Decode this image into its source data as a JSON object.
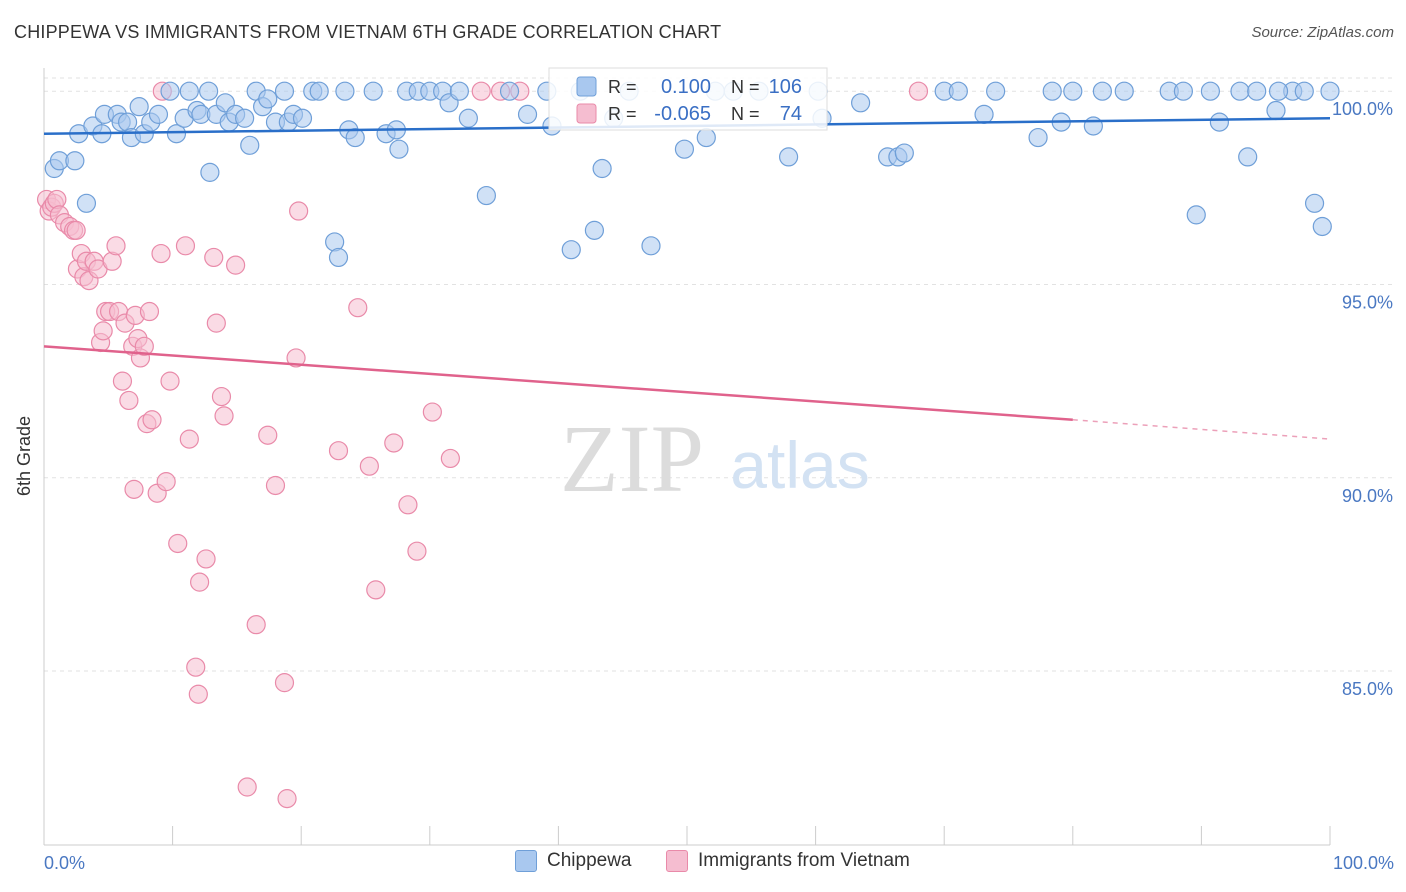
{
  "header": {
    "title": "CHIPPEWA VS IMMIGRANTS FROM VIETNAM 6TH GRADE CORRELATION CHART",
    "source": "Source: ZipAtlas.com"
  },
  "watermark": {
    "zip": "ZIP",
    "atlas": "atlas"
  },
  "legend_top": {
    "rows": [
      {
        "r_label": "R =",
        "r_value": "0.100",
        "n_label": "N =",
        "n_value": "106"
      },
      {
        "r_label": "R =",
        "r_value": "-0.065",
        "n_label": "N =",
        "n_value": "74"
      }
    ]
  },
  "legend_bottom": {
    "items": [
      "Chippewa",
      "Immigrants from Vietnam"
    ]
  },
  "colors": {
    "blue_fill": "#a9c8ef",
    "blue_stroke": "#6f9fd8",
    "blue_line": "#2a6fc9",
    "pink_fill": "#f5bdd0",
    "pink_stroke": "#e98aa9",
    "pink_line": "#e0628c",
    "tick_label": "#4a78c2",
    "grid": "#e2e2e2"
  },
  "chart_data": {
    "type": "scatter",
    "title": "CHIPPEWA VS IMMIGRANTS FROM VIETNAM 6TH GRADE CORRELATION CHART",
    "xlabel": "",
    "ylabel": "6th Grade",
    "xlim": [
      0,
      100
    ],
    "ylim": [
      80.5,
      100.6
    ],
    "x_tick_labels": [
      "0.0%",
      "100.0%"
    ],
    "y_ticks": [
      85,
      90,
      95,
      100
    ],
    "y_tick_labels": [
      "85.0%",
      "90.0%",
      "95.0%",
      "100.0%"
    ],
    "grid": true,
    "legend": "bottom",
    "series": [
      {
        "name": "Chippewa",
        "r": 0.1,
        "n": 106,
        "trend": {
          "x": [
            0,
            100
          ],
          "y": [
            98.9,
            99.3
          ]
        },
        "points": [
          [
            0.8,
            98.0
          ],
          [
            1.2,
            98.2
          ],
          [
            2.4,
            98.2
          ],
          [
            2.7,
            98.9
          ],
          [
            3.3,
            97.1
          ],
          [
            3.8,
            99.1
          ],
          [
            4.5,
            98.9
          ],
          [
            4.7,
            99.4
          ],
          [
            5.7,
            99.4
          ],
          [
            6.0,
            99.2
          ],
          [
            6.5,
            99.2
          ],
          [
            6.8,
            98.8
          ],
          [
            7.4,
            99.6
          ],
          [
            7.8,
            98.9
          ],
          [
            8.3,
            99.2
          ],
          [
            8.9,
            99.4
          ],
          [
            9.8,
            100.0
          ],
          [
            10.3,
            98.9
          ],
          [
            10.9,
            99.3
          ],
          [
            11.3,
            100.0
          ],
          [
            11.9,
            99.5
          ],
          [
            12.2,
            99.4
          ],
          [
            12.8,
            100.0
          ],
          [
            12.9,
            97.9
          ],
          [
            13.4,
            99.4
          ],
          [
            14.1,
            99.7
          ],
          [
            14.4,
            99.2
          ],
          [
            14.9,
            99.4
          ],
          [
            15.6,
            99.3
          ],
          [
            16.0,
            98.6
          ],
          [
            16.5,
            100.0
          ],
          [
            17.0,
            99.6
          ],
          [
            17.4,
            99.8
          ],
          [
            18.0,
            99.2
          ],
          [
            18.7,
            100.0
          ],
          [
            19.0,
            99.2
          ],
          [
            19.4,
            99.4
          ],
          [
            20.1,
            99.3
          ],
          [
            20.9,
            100.0
          ],
          [
            21.4,
            100.0
          ],
          [
            22.6,
            96.1
          ],
          [
            22.9,
            95.7
          ],
          [
            23.4,
            100.0
          ],
          [
            23.7,
            99.0
          ],
          [
            24.2,
            98.8
          ],
          [
            25.6,
            100.0
          ],
          [
            26.6,
            98.9
          ],
          [
            27.4,
            99.0
          ],
          [
            27.6,
            98.5
          ],
          [
            28.2,
            100.0
          ],
          [
            29.1,
            100.0
          ],
          [
            30.0,
            100.0
          ],
          [
            31.0,
            100.0
          ],
          [
            31.5,
            99.7
          ],
          [
            32.3,
            100.0
          ],
          [
            33.0,
            99.3
          ],
          [
            34.4,
            97.3
          ],
          [
            36.2,
            100.0
          ],
          [
            37.6,
            99.4
          ],
          [
            39.1,
            100.0
          ],
          [
            41.0,
            95.9
          ],
          [
            41.7,
            100.0
          ],
          [
            42.8,
            96.4
          ],
          [
            43.4,
            98.0
          ],
          [
            44.3,
            99.3
          ],
          [
            45.5,
            100.0
          ],
          [
            47.2,
            96.0
          ],
          [
            49.8,
            98.5
          ],
          [
            51.5,
            98.8
          ],
          [
            52.2,
            100.0
          ],
          [
            53.6,
            100.0
          ],
          [
            55.6,
            100.0
          ],
          [
            57.9,
            98.3
          ],
          [
            60.2,
            100.0
          ],
          [
            63.5,
            99.7
          ],
          [
            65.6,
            98.3
          ],
          [
            66.4,
            98.3
          ],
          [
            66.9,
            98.4
          ],
          [
            70.0,
            100.0
          ],
          [
            71.1,
            100.0
          ],
          [
            73.1,
            99.4
          ],
          [
            77.3,
            98.8
          ],
          [
            78.4,
            100.0
          ],
          [
            79.1,
            99.2
          ],
          [
            80.0,
            100.0
          ],
          [
            81.6,
            99.1
          ],
          [
            82.3,
            100.0
          ],
          [
            84.0,
            100.0
          ],
          [
            87.5,
            100.0
          ],
          [
            88.6,
            100.0
          ],
          [
            89.6,
            96.8
          ],
          [
            90.7,
            100.0
          ],
          [
            91.4,
            99.2
          ],
          [
            93.0,
            100.0
          ],
          [
            93.6,
            98.3
          ],
          [
            94.3,
            100.0
          ],
          [
            95.8,
            99.5
          ],
          [
            97.1,
            100.0
          ],
          [
            98.8,
            97.1
          ],
          [
            99.4,
            96.5
          ],
          [
            100.0,
            100.0
          ],
          [
            96.0,
            100.0
          ],
          [
            98.0,
            100.0
          ],
          [
            39.5,
            99.1
          ],
          [
            60.5,
            99.3
          ],
          [
            74.0,
            100.0
          ]
        ]
      },
      {
        "name": "Immigrants from Vietnam",
        "r": -0.065,
        "n": 74,
        "trend": {
          "x": [
            0,
            80
          ],
          "y": [
            93.4,
            91.5
          ],
          "dashed_to": [
            100,
            91.0
          ]
        },
        "points": [
          [
            0.2,
            97.2
          ],
          [
            0.4,
            96.9
          ],
          [
            0.6,
            97.0
          ],
          [
            0.8,
            97.1
          ],
          [
            1.0,
            97.2
          ],
          [
            1.2,
            96.8
          ],
          [
            1.6,
            96.6
          ],
          [
            2.0,
            96.5
          ],
          [
            2.3,
            96.4
          ],
          [
            2.5,
            96.4
          ],
          [
            2.6,
            95.4
          ],
          [
            2.9,
            95.8
          ],
          [
            3.1,
            95.2
          ],
          [
            3.3,
            95.6
          ],
          [
            3.5,
            95.1
          ],
          [
            3.9,
            95.6
          ],
          [
            4.2,
            95.4
          ],
          [
            4.4,
            93.5
          ],
          [
            4.6,
            93.8
          ],
          [
            4.8,
            94.3
          ],
          [
            5.1,
            94.3
          ],
          [
            5.3,
            95.6
          ],
          [
            5.6,
            96.0
          ],
          [
            5.8,
            94.3
          ],
          [
            6.1,
            92.5
          ],
          [
            6.3,
            94.0
          ],
          [
            6.6,
            92.0
          ],
          [
            6.9,
            93.4
          ],
          [
            7.1,
            94.2
          ],
          [
            7.3,
            93.6
          ],
          [
            7.5,
            93.1
          ],
          [
            7.8,
            93.4
          ],
          [
            8.0,
            91.4
          ],
          [
            8.2,
            94.3
          ],
          [
            8.4,
            91.5
          ],
          [
            8.8,
            89.6
          ],
          [
            9.1,
            95.8
          ],
          [
            9.5,
            89.9
          ],
          [
            9.8,
            92.5
          ],
          [
            10.4,
            88.3
          ],
          [
            11.0,
            96.0
          ],
          [
            11.3,
            91.0
          ],
          [
            12.1,
            87.3
          ],
          [
            12.6,
            87.9
          ],
          [
            13.2,
            95.7
          ],
          [
            13.4,
            94.0
          ],
          [
            13.8,
            92.1
          ],
          [
            14.0,
            91.6
          ],
          [
            14.9,
            95.5
          ],
          [
            15.8,
            82.0
          ],
          [
            16.5,
            86.2
          ],
          [
            17.4,
            91.1
          ],
          [
            18.0,
            89.8
          ],
          [
            18.7,
            84.7
          ],
          [
            18.9,
            81.7
          ],
          [
            19.6,
            93.1
          ],
          [
            19.8,
            96.9
          ],
          [
            22.9,
            90.7
          ],
          [
            24.4,
            94.4
          ],
          [
            25.3,
            90.3
          ],
          [
            25.8,
            87.1
          ],
          [
            27.2,
            90.9
          ],
          [
            28.3,
            89.3
          ],
          [
            29.0,
            88.1
          ],
          [
            30.2,
            91.7
          ],
          [
            31.6,
            90.5
          ],
          [
            34.0,
            100.0
          ],
          [
            35.5,
            100.0
          ],
          [
            37.0,
            100.0
          ],
          [
            68.0,
            100.0
          ],
          [
            9.2,
            100.0
          ],
          [
            11.8,
            85.1
          ],
          [
            12.0,
            84.4
          ],
          [
            7.0,
            89.7
          ]
        ]
      }
    ]
  }
}
